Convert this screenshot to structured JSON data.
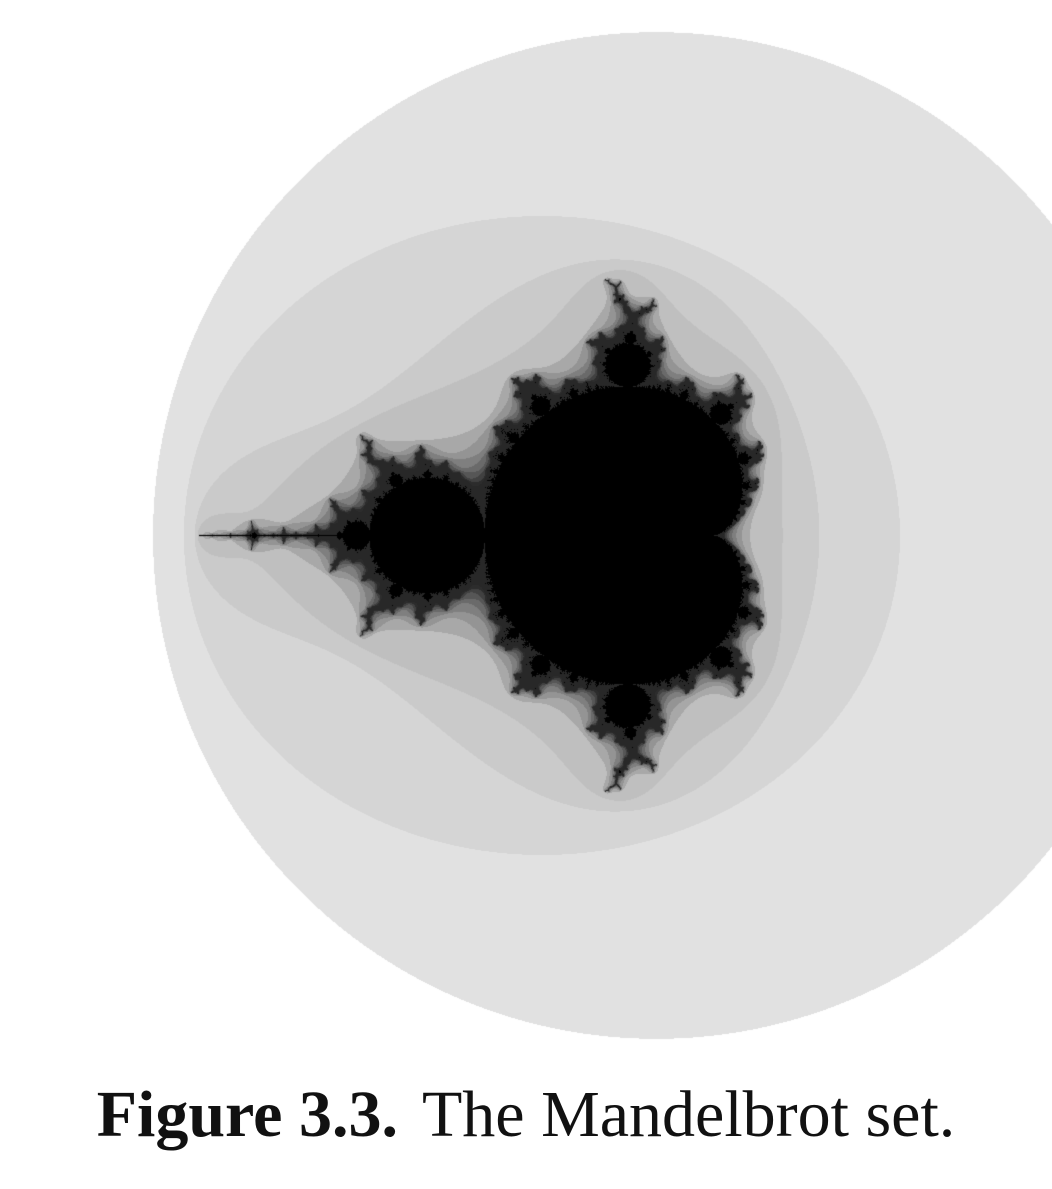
{
  "figure": {
    "label": "Figure 3.3.",
    "caption": "The Mandelbrot set."
  },
  "fractal": {
    "colors": {
      "background": "#ffffff",
      "set": "#000000",
      "outer_band": "#f1f1f1",
      "inner_band": "#bdbdbd"
    }
  }
}
